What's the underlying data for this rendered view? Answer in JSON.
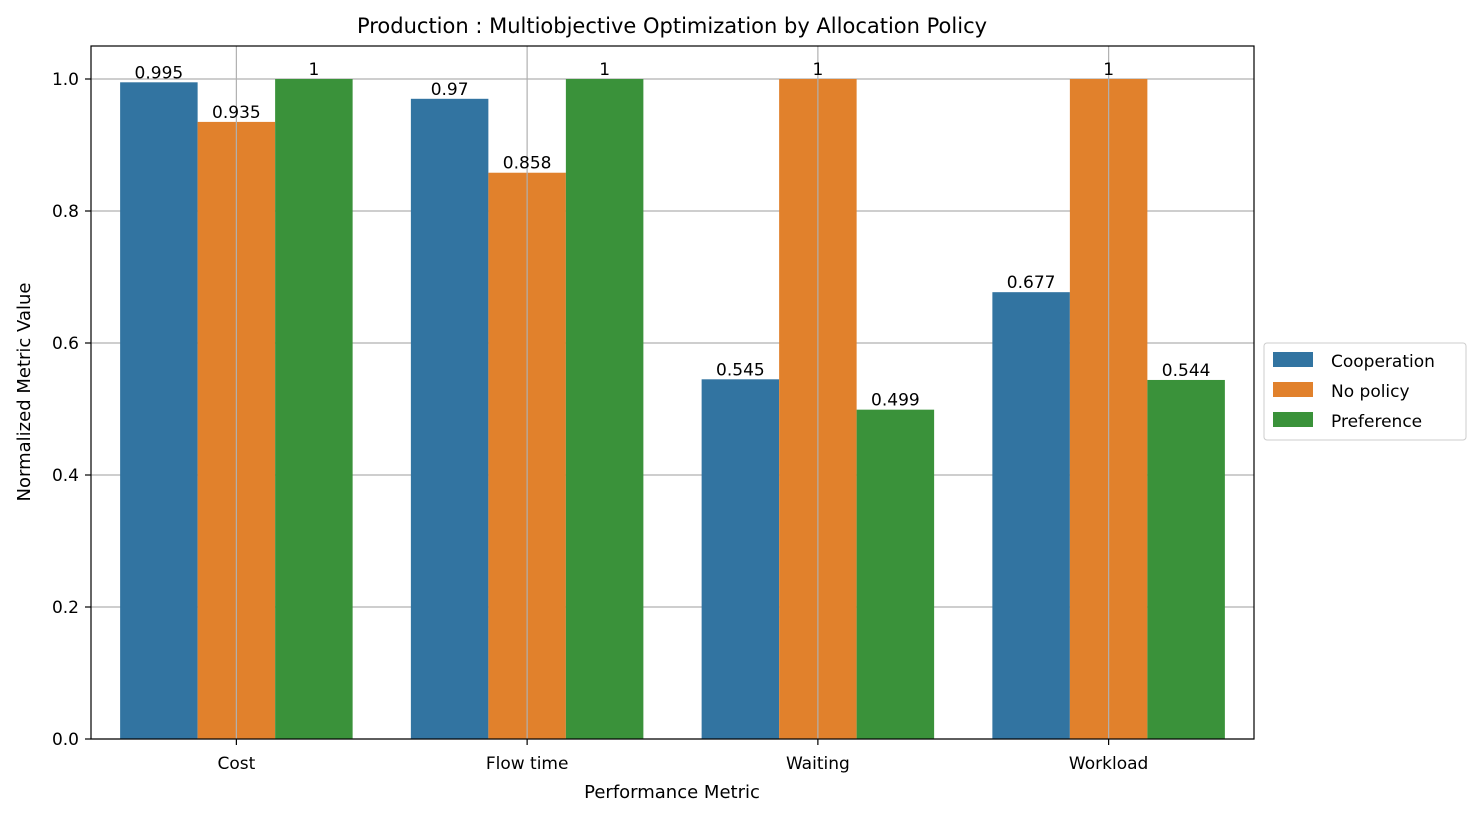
{
  "chart_data": {
    "type": "bar",
    "title": "Production : Multiobjective Optimization by Allocation Policy",
    "xlabel": "Performance Metric",
    "ylabel": "Normalized Metric Value",
    "categories": [
      "Cost",
      "Flow time",
      "Waiting",
      "Workload"
    ],
    "series": [
      {
        "name": "Cooperation",
        "color": "#3274a1",
        "values": [
          0.995,
          0.97,
          0.545,
          0.677
        ],
        "labels": [
          "0.995",
          "0.97",
          "0.545",
          "0.677"
        ]
      },
      {
        "name": "No policy",
        "color": "#e1812c",
        "values": [
          0.935,
          0.858,
          1,
          1
        ],
        "labels": [
          "0.935",
          "0.858",
          "1",
          "1"
        ]
      },
      {
        "name": "Preference",
        "color": "#3a923a",
        "values": [
          1,
          1,
          0.499,
          0.544
        ],
        "labels": [
          "1",
          "1",
          "0.499",
          "0.544"
        ]
      }
    ],
    "ylim": [
      0,
      1.05
    ],
    "yticks": [
      0.0,
      0.2,
      0.4,
      0.6,
      0.8,
      1.0
    ],
    "ytick_labels": [
      "0.0",
      "0.2",
      "0.4",
      "0.6",
      "0.8",
      "1.0"
    ],
    "grid": true,
    "legend_position": "right-outside-center"
  }
}
